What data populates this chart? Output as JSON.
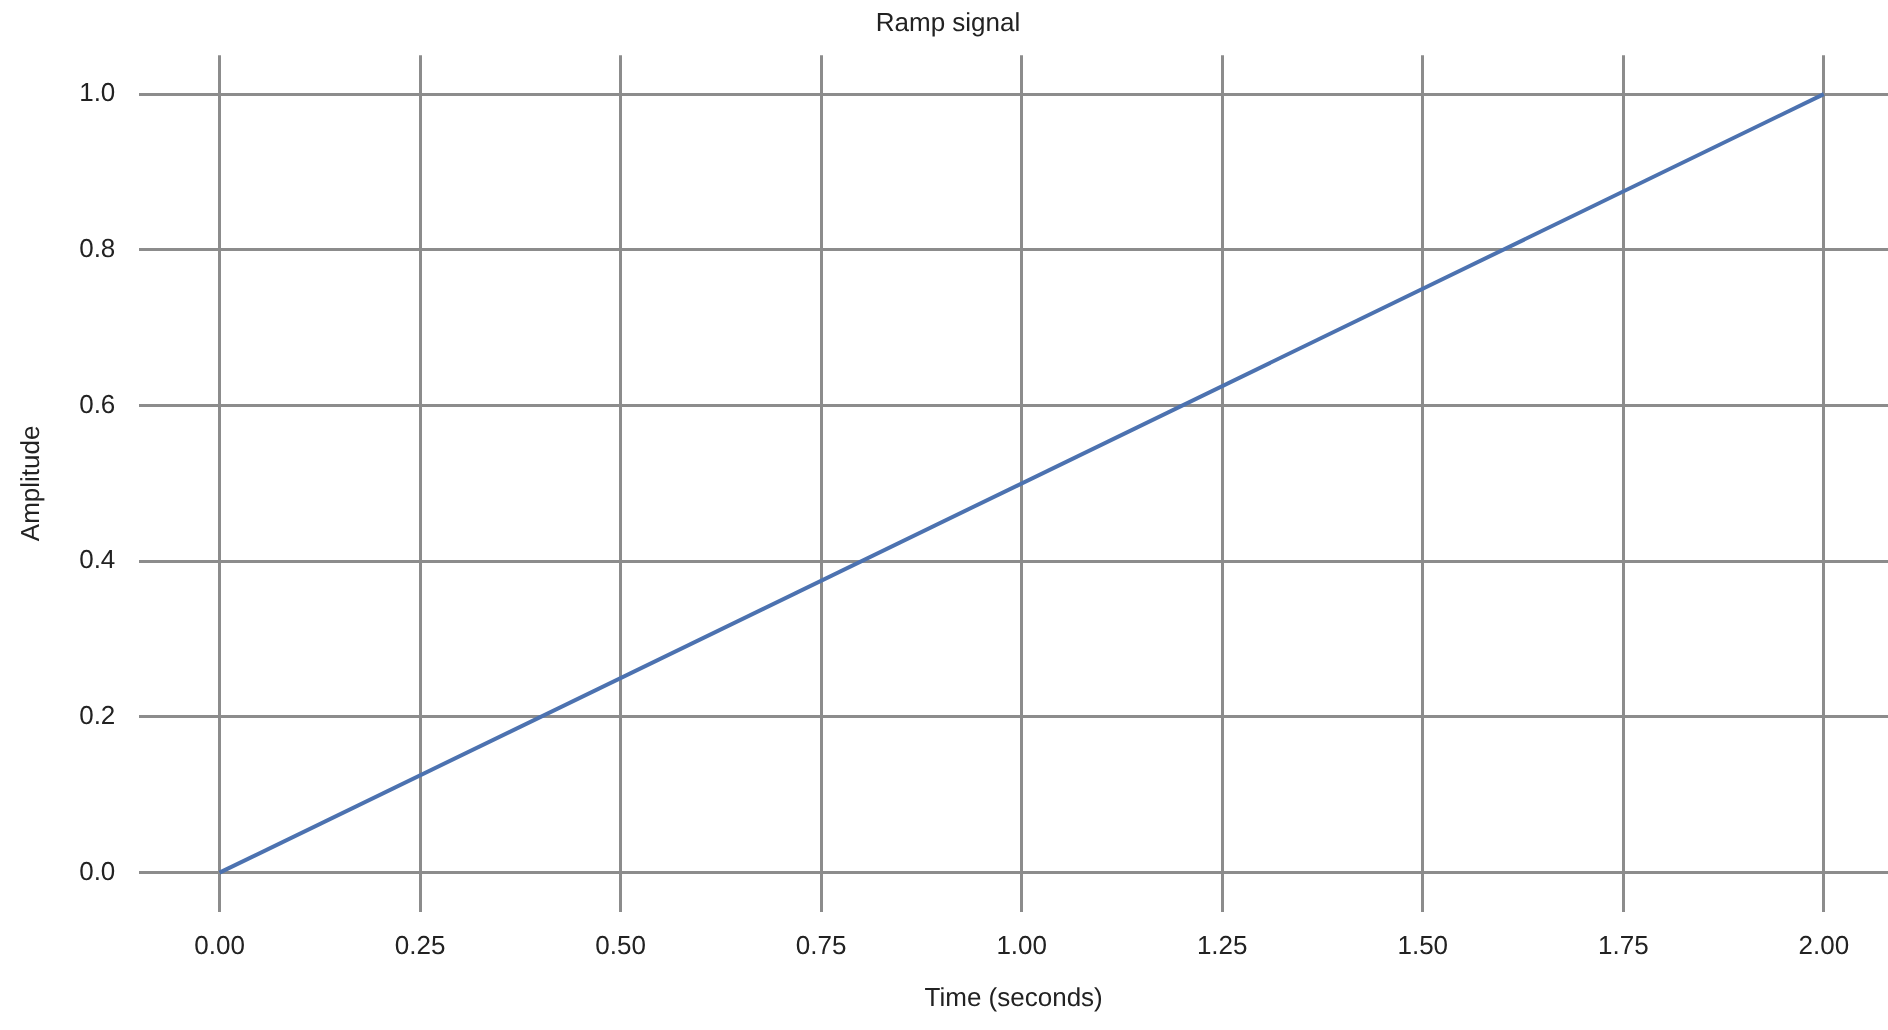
{
  "chart_data": {
    "type": "line",
    "title": "Ramp signal",
    "xlabel": "Time (seconds)",
    "ylabel": "Amplitude",
    "x": [
      0,
      2
    ],
    "series": [
      {
        "color": "#4c72b0",
        "values": [
          0,
          1
        ]
      }
    ],
    "xlim": [
      -0.1,
      2.08
    ],
    "ylim": [
      -0.05,
      1.05
    ],
    "xticks": [
      {
        "value": 0,
        "label": "0.00"
      },
      {
        "value": 0.25,
        "label": "0.25"
      },
      {
        "value": 0.5,
        "label": "0.50"
      },
      {
        "value": 0.75,
        "label": "0.75"
      },
      {
        "value": 1,
        "label": "1.00"
      },
      {
        "value": 1.25,
        "label": "1.25"
      },
      {
        "value": 1.5,
        "label": "1.50"
      },
      {
        "value": 1.75,
        "label": "1.75"
      },
      {
        "value": 2,
        "label": "2.00"
      }
    ],
    "yticks": [
      {
        "value": 0,
        "label": "0.0"
      },
      {
        "value": 0.2,
        "label": "0.2"
      },
      {
        "value": 0.4,
        "label": "0.4"
      },
      {
        "value": 0.6,
        "label": "0.6"
      },
      {
        "value": 0.8,
        "label": "0.8"
      },
      {
        "value": 1,
        "label": "1.0"
      }
    ],
    "grid": true,
    "legend": false,
    "marker": "none",
    "line_style": "solid"
  }
}
